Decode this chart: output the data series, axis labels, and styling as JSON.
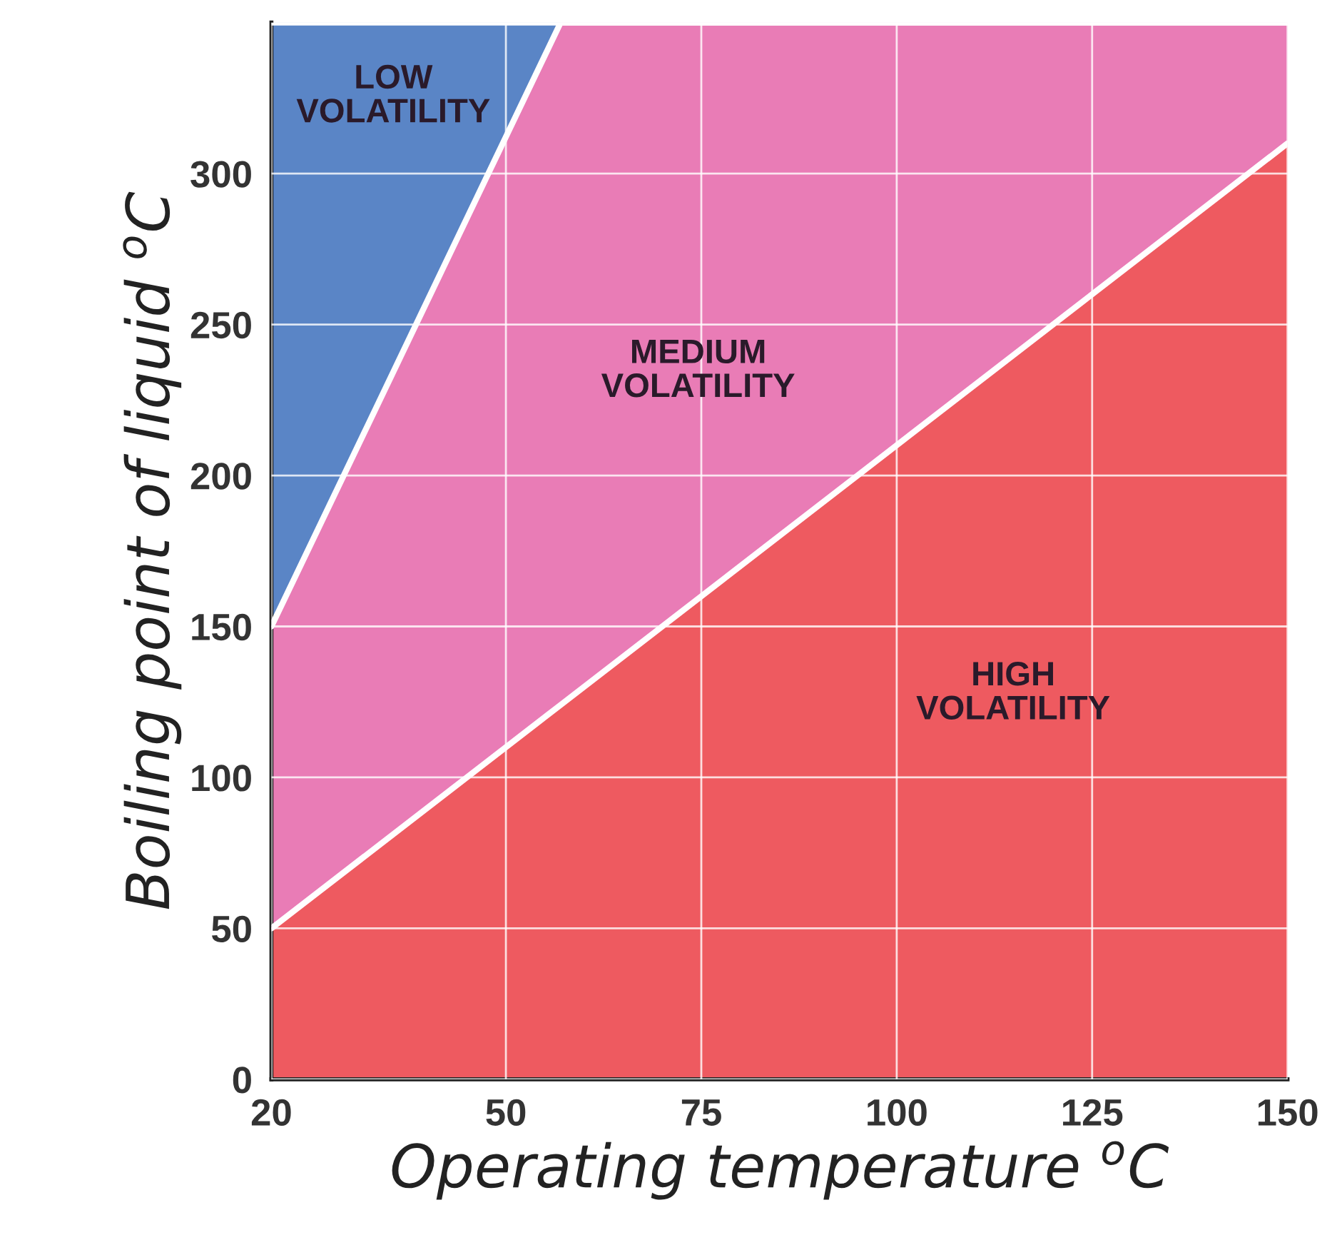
{
  "chart_data": {
    "type": "area",
    "stacked": true,
    "xlabel": "Operating temperature $^{o}$C",
    "ylabel": "Boiling point of liquid $^{o}$C",
    "x": [
      20,
      57,
      150
    ],
    "series": [
      {
        "color": "#ee5a60",
        "values": [
          50,
          124,
          310
        ]
      },
      {
        "color": "#e97cb6",
        "values": [
          100,
          226,
          40
        ]
      },
      {
        "color": "#5a85c6",
        "values": [
          200,
          0,
          0
        ]
      }
    ],
    "xlim": [
      20,
      150
    ],
    "ylim": [
      0,
      350
    ],
    "xticks": [
      20,
      50,
      75,
      100,
      125,
      150
    ],
    "yticks": [
      0,
      50,
      100,
      150,
      200,
      250,
      300
    ],
    "grid": true,
    "annotations": [
      "LOW\nVOLATILITY",
      "MEDIUM\nVOLATILITY",
      "HIGH\nVOLATILITY"
    ]
  }
}
